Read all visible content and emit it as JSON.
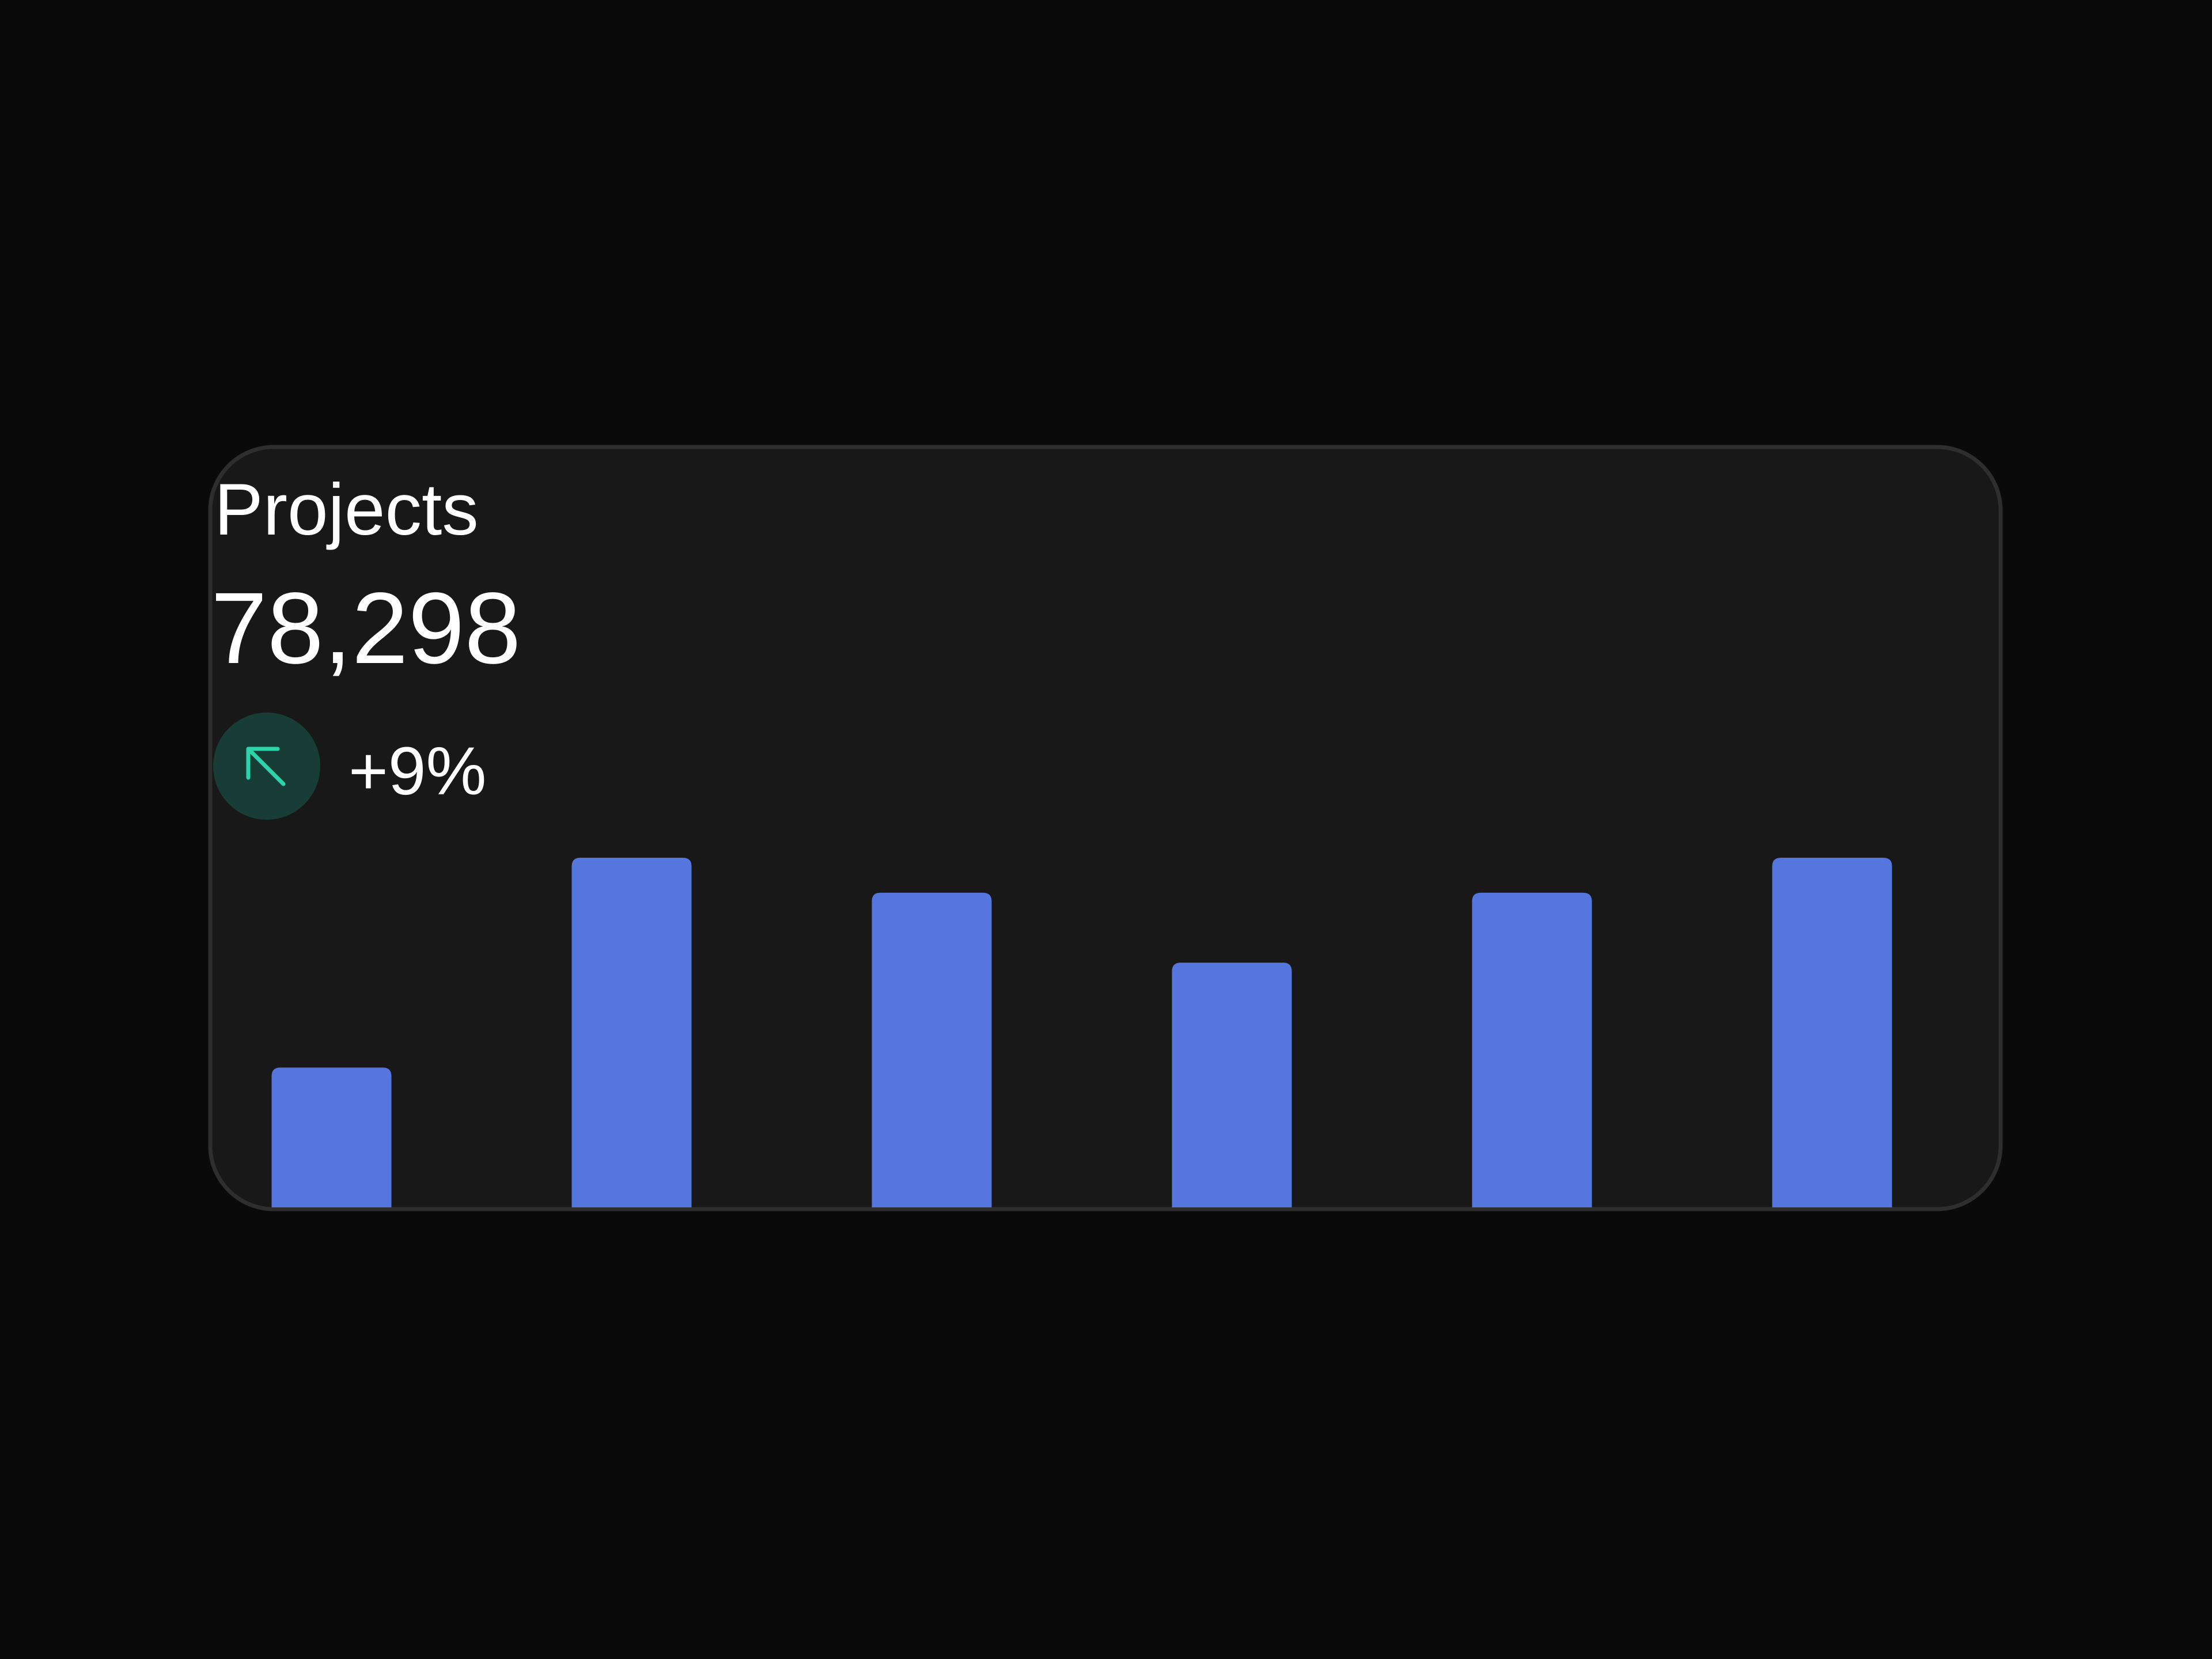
{
  "chart_data": {
    "type": "bar",
    "title": "Projects",
    "total": "78,298",
    "change": "+9%",
    "categories": [
      null,
      null,
      null,
      null,
      null,
      null
    ],
    "values": [
      40,
      100,
      90,
      70,
      90,
      100
    ],
    "color": "#5577dd",
    "ylim": [
      0,
      100
    ],
    "grid": false
  }
}
